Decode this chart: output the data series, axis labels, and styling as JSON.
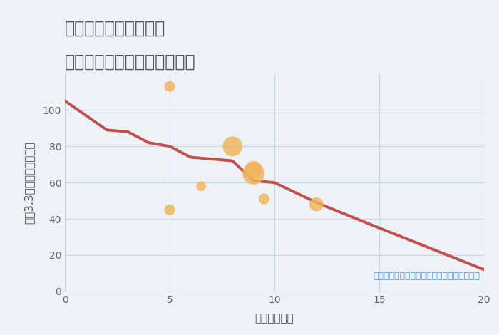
{
  "title_line1": "福岡県太宰府市白川の",
  "title_line2": "駅距離別中古マンション価格",
  "xlabel": "駅距離（分）",
  "ylabel": "坪（3.3㎡）単価（万円）",
  "bg_color": "#eef2f7",
  "line_color": "#c0504d",
  "scatter_color": "#f0b45a",
  "annotation_color": "#5b9bd5",
  "annotation_text": "円の大きさは、取引のあった物件面積を示す",
  "line_x": [
    0,
    2,
    3,
    4,
    5,
    6,
    7,
    8,
    9,
    10,
    12,
    15,
    20
  ],
  "line_y": [
    105,
    89,
    88,
    82,
    80,
    74,
    73,
    72,
    61,
    60,
    49,
    35,
    12
  ],
  "scatter_x": [
    5,
    5,
    6.5,
    8,
    9,
    9,
    9.5,
    12
  ],
  "scatter_y": [
    113,
    45,
    58,
    80,
    65,
    67,
    51,
    48
  ],
  "scatter_sizes": [
    120,
    120,
    100,
    400,
    500,
    320,
    120,
    200
  ],
  "xlim": [
    0,
    20
  ],
  "ylim": [
    0,
    120
  ],
  "xticks": [
    0,
    5,
    10,
    15,
    20
  ],
  "yticks": [
    0,
    20,
    40,
    60,
    80,
    100
  ],
  "title_fontsize": 17,
  "label_fontsize": 11,
  "tick_fontsize": 10,
  "annotation_fontsize": 9
}
